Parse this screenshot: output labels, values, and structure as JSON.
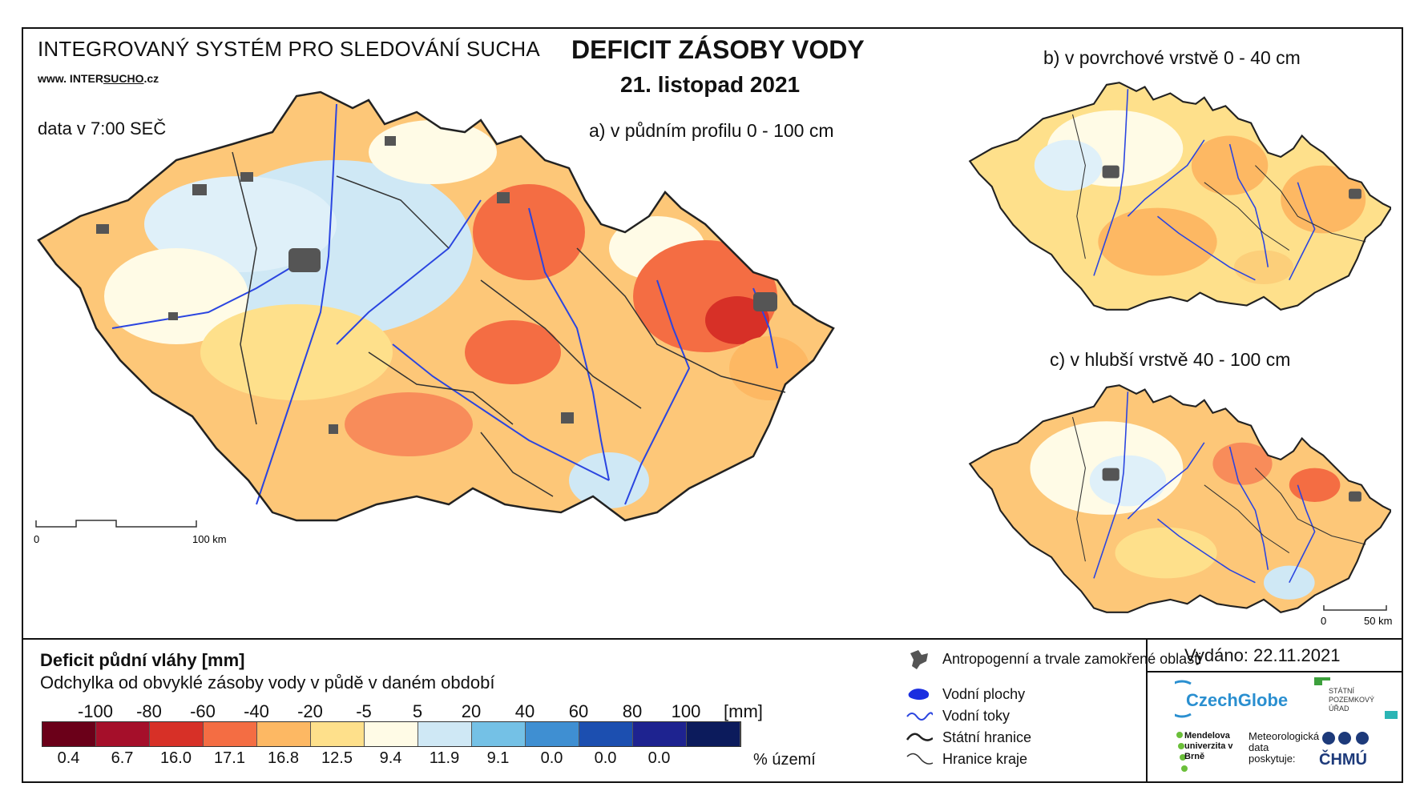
{
  "header": {
    "system_name": "INTEGROVANÝ SYSTÉM PRO SLEDOVÁNÍ SUCHA",
    "website_prefix": "www. INTER",
    "website_highlight": "SUCHO",
    "website_suffix": ".cz",
    "data_time": "data v 7:00 SEČ",
    "title": "DEFICIT ZÁSOBY VODY",
    "date": "21. listopad 2021"
  },
  "maps": {
    "a_label": "a) v půdním profilu 0 - 100 cm",
    "b_label": "b) v povrchové vrstvě 0 - 40 cm",
    "c_label": "c) v hlubší vrstvě 40 - 100 cm",
    "scale_main_start": "0",
    "scale_main_end": "100 km",
    "scale_small_start": "0",
    "scale_small_end": "50 km"
  },
  "legend": {
    "title": "Deficit půdní vláhy  [mm]",
    "subtitle": "Odchylka od obvyklé zásoby vody v půdě v daném období",
    "unit": "[mm]",
    "percent_label": "% území",
    "breaks": [
      "-100",
      "-80",
      "-60",
      "-40",
      "-20",
      "-5",
      "5",
      "20",
      "40",
      "60",
      "80",
      "100"
    ],
    "classes": [
      {
        "color": "#6b0019",
        "percent": "0.4"
      },
      {
        "color": "#a50f2a",
        "percent": "6.7"
      },
      {
        "color": "#d73027",
        "percent": "16.0"
      },
      {
        "color": "#f46d43",
        "percent": "17.1"
      },
      {
        "color": "#fdb863",
        "percent": "16.8"
      },
      {
        "color": "#fee08b",
        "percent": "12.5"
      },
      {
        "color": "#fffbe6",
        "percent": "9.4"
      },
      {
        "color": "#cfe8f5",
        "percent": "11.9"
      },
      {
        "color": "#74c1e6",
        "percent": "9.1"
      },
      {
        "color": "#3f8fd2",
        "percent": "0.0"
      },
      {
        "color": "#1c4fb0",
        "percent": "0.0"
      },
      {
        "color": "#1e2390",
        "percent": "0.0"
      },
      {
        "color": "#0c1b5c",
        "percent": ""
      }
    ]
  },
  "symbols": {
    "urban": "Antropogenní a trvale zamokřené oblasti",
    "water_bodies": "Vodní plochy",
    "rivers": "Vodní toky",
    "state_border": "Státní hranice",
    "region_border": "Hranice kraje"
  },
  "footer": {
    "issued": "Vydáno: 22.11.2021",
    "czechglobe": "CzechGlobe",
    "spu": "STÁTNÍ POZEMKOVÝ ÚŘAD",
    "mendel": "Mendelova univerzita v Brně",
    "meteo": "Meteorologická data poskytuje:",
    "chmu": "ČHMÚ"
  },
  "colors": {
    "river": "#2b45e0",
    "border": "#222222",
    "urban": "#555555"
  }
}
